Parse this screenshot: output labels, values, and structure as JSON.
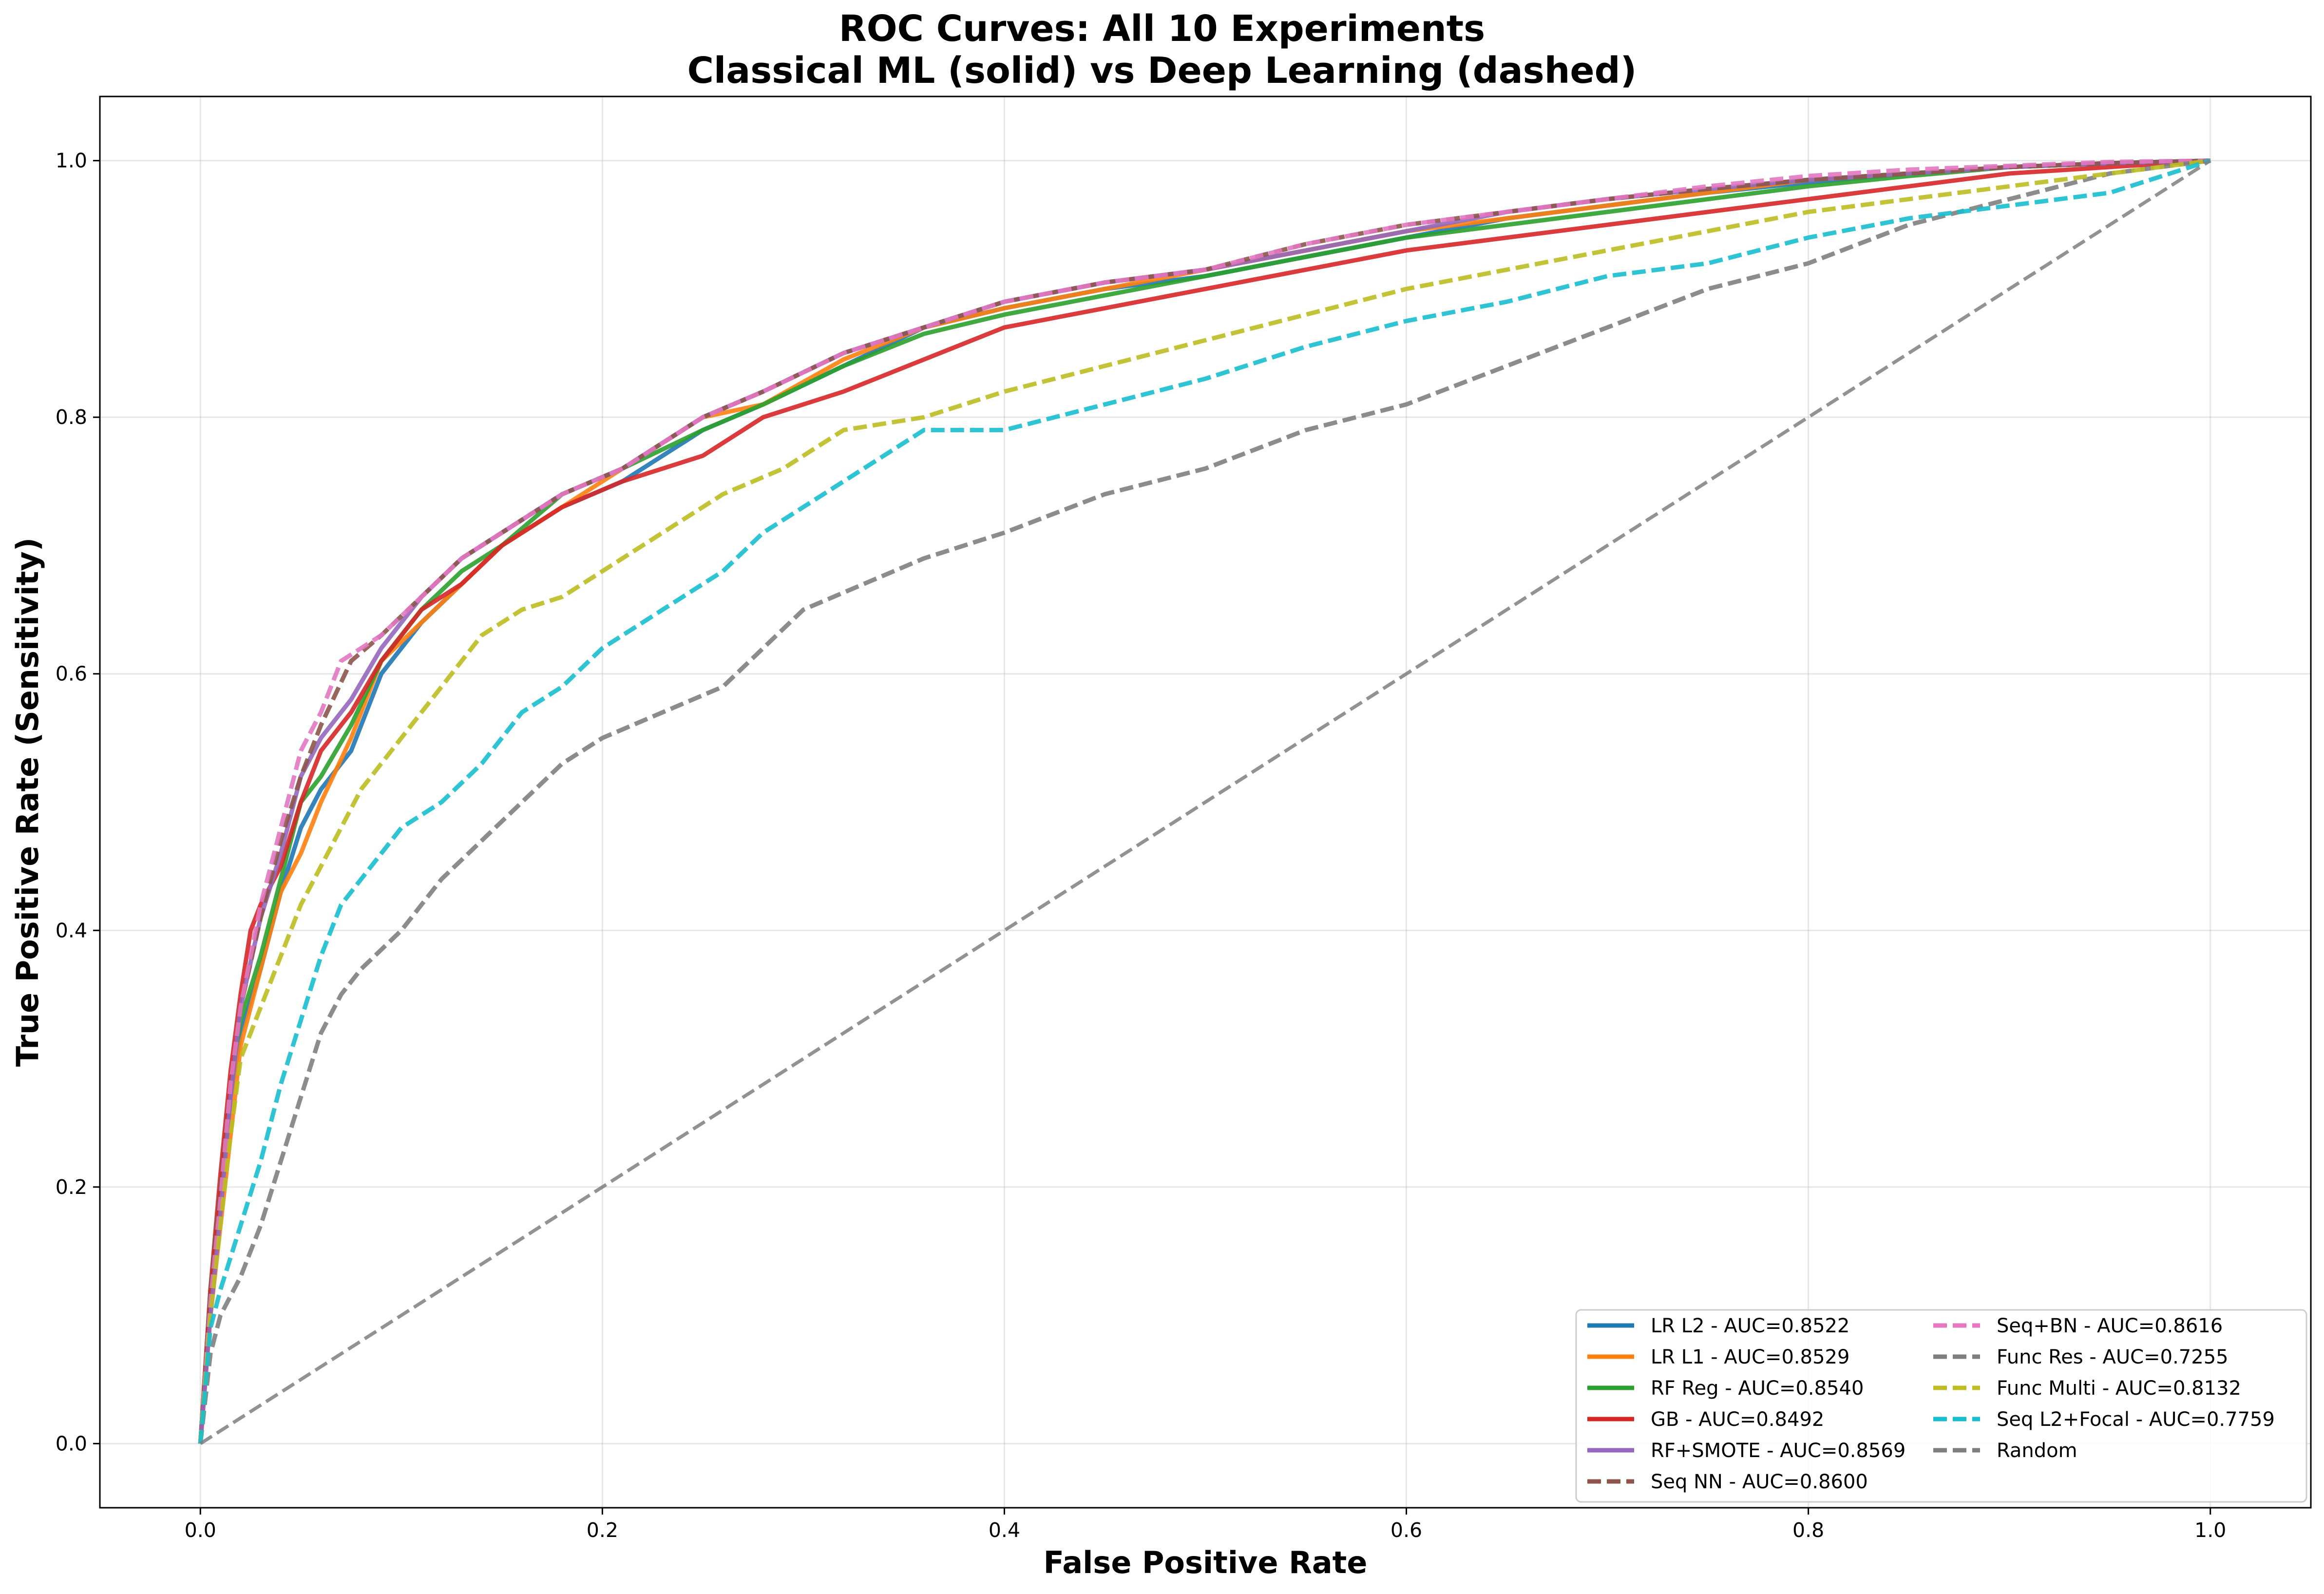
{
  "chart_data": {
    "type": "line",
    "title_line1": "ROC Curves: All 10 Experiments",
    "title_line2": "Classical ML (solid) vs Deep Learning (dashed)",
    "xlabel": "False Positive Rate",
    "ylabel": "True Positive Rate (Sensitivity)",
    "xlim": [
      -0.05,
      1.05
    ],
    "ylim": [
      -0.05,
      1.05
    ],
    "xticks": [
      "0.0",
      "0.2",
      "0.4",
      "0.6",
      "0.8",
      "1.0"
    ],
    "yticks": [
      "0.0",
      "0.2",
      "0.4",
      "0.6",
      "0.8",
      "1.0"
    ],
    "grid": true,
    "legend_position": "lower-right",
    "series": [
      {
        "name": "LR L2 - AUC=0.8522",
        "color": "#1f77b4",
        "style": "solid",
        "x": [
          0,
          0.005,
          0.01,
          0.015,
          0.02,
          0.03,
          0.04,
          0.05,
          0.06,
          0.075,
          0.09,
          0.11,
          0.13,
          0.15,
          0.18,
          0.21,
          0.25,
          0.28,
          0.32,
          0.36,
          0.4,
          0.45,
          0.5,
          0.55,
          0.6,
          0.65,
          0.7,
          0.75,
          0.8,
          0.85,
          0.9,
          0.95,
          1.0
        ],
        "y": [
          0,
          0.11,
          0.19,
          0.27,
          0.32,
          0.37,
          0.43,
          0.48,
          0.51,
          0.54,
          0.6,
          0.64,
          0.67,
          0.7,
          0.73,
          0.75,
          0.79,
          0.81,
          0.84,
          0.87,
          0.885,
          0.9,
          0.91,
          0.925,
          0.94,
          0.955,
          0.965,
          0.975,
          0.983,
          0.99,
          0.995,
          0.998,
          1.0
        ]
      },
      {
        "name": "LR L1 - AUC=0.8529",
        "color": "#ff7f0e",
        "style": "solid",
        "x": [
          0,
          0.005,
          0.01,
          0.015,
          0.02,
          0.03,
          0.04,
          0.05,
          0.06,
          0.075,
          0.09,
          0.11,
          0.13,
          0.15,
          0.18,
          0.21,
          0.25,
          0.28,
          0.32,
          0.36,
          0.4,
          0.45,
          0.5,
          0.55,
          0.6,
          0.65,
          0.7,
          0.75,
          0.8,
          0.85,
          0.9,
          0.95,
          1.0
        ],
        "y": [
          0,
          0.1,
          0.17,
          0.24,
          0.31,
          0.37,
          0.43,
          0.46,
          0.5,
          0.55,
          0.61,
          0.64,
          0.67,
          0.7,
          0.73,
          0.76,
          0.8,
          0.81,
          0.845,
          0.87,
          0.885,
          0.9,
          0.915,
          0.93,
          0.945,
          0.955,
          0.965,
          0.975,
          0.985,
          0.99,
          0.995,
          0.998,
          1.0
        ]
      },
      {
        "name": "RF Reg - AUC=0.8540",
        "color": "#2ca02c",
        "style": "solid",
        "x": [
          0,
          0.005,
          0.01,
          0.015,
          0.02,
          0.03,
          0.04,
          0.05,
          0.06,
          0.075,
          0.09,
          0.11,
          0.13,
          0.15,
          0.18,
          0.21,
          0.25,
          0.28,
          0.32,
          0.36,
          0.4,
          0.45,
          0.5,
          0.55,
          0.6,
          0.65,
          0.7,
          0.75,
          0.8,
          0.85,
          0.9,
          0.95,
          1.0
        ],
        "y": [
          0,
          0.12,
          0.2,
          0.28,
          0.33,
          0.38,
          0.44,
          0.5,
          0.52,
          0.56,
          0.61,
          0.65,
          0.68,
          0.7,
          0.74,
          0.76,
          0.79,
          0.81,
          0.84,
          0.865,
          0.88,
          0.895,
          0.91,
          0.925,
          0.94,
          0.95,
          0.96,
          0.97,
          0.98,
          0.988,
          0.995,
          0.998,
          1.0
        ]
      },
      {
        "name": "GB - AUC=0.8492",
        "color": "#d62728",
        "style": "solid",
        "x": [
          0,
          0.005,
          0.01,
          0.015,
          0.02,
          0.025,
          0.03,
          0.04,
          0.05,
          0.06,
          0.075,
          0.09,
          0.11,
          0.13,
          0.15,
          0.18,
          0.21,
          0.25,
          0.28,
          0.32,
          0.36,
          0.4,
          0.45,
          0.5,
          0.55,
          0.6,
          0.65,
          0.7,
          0.75,
          0.8,
          0.85,
          0.9,
          0.95,
          1.0
        ],
        "y": [
          0,
          0.12,
          0.21,
          0.29,
          0.35,
          0.4,
          0.42,
          0.45,
          0.5,
          0.54,
          0.57,
          0.61,
          0.65,
          0.67,
          0.7,
          0.73,
          0.75,
          0.77,
          0.8,
          0.82,
          0.845,
          0.87,
          0.885,
          0.9,
          0.915,
          0.93,
          0.94,
          0.95,
          0.96,
          0.97,
          0.98,
          0.99,
          0.995,
          1.0
        ]
      },
      {
        "name": "RF+SMOTE - AUC=0.8569",
        "color": "#9467bd",
        "style": "solid",
        "x": [
          0,
          0.005,
          0.01,
          0.015,
          0.02,
          0.03,
          0.04,
          0.05,
          0.06,
          0.075,
          0.09,
          0.11,
          0.13,
          0.15,
          0.18,
          0.21,
          0.25,
          0.28,
          0.32,
          0.36,
          0.4,
          0.45,
          0.5,
          0.55,
          0.6,
          0.65,
          0.7,
          0.75,
          0.8,
          0.85,
          0.9,
          0.95,
          1.0
        ],
        "y": [
          0,
          0.1,
          0.18,
          0.27,
          0.34,
          0.41,
          0.46,
          0.52,
          0.55,
          0.58,
          0.62,
          0.66,
          0.69,
          0.71,
          0.74,
          0.76,
          0.8,
          0.82,
          0.85,
          0.87,
          0.89,
          0.905,
          0.915,
          0.93,
          0.945,
          0.96,
          0.97,
          0.978,
          0.985,
          0.99,
          0.995,
          0.998,
          1.0
        ]
      },
      {
        "name": "Seq NN - AUC=0.8600",
        "color": "#8c564b",
        "style": "dashed",
        "x": [
          0,
          0.005,
          0.01,
          0.015,
          0.02,
          0.03,
          0.04,
          0.05,
          0.06,
          0.075,
          0.09,
          0.11,
          0.13,
          0.15,
          0.18,
          0.21,
          0.25,
          0.28,
          0.32,
          0.36,
          0.4,
          0.45,
          0.5,
          0.55,
          0.6,
          0.65,
          0.7,
          0.75,
          0.8,
          0.85,
          0.9,
          0.95,
          1.0
        ],
        "y": [
          0,
          0.12,
          0.2,
          0.28,
          0.34,
          0.41,
          0.47,
          0.52,
          0.56,
          0.61,
          0.63,
          0.66,
          0.69,
          0.71,
          0.74,
          0.76,
          0.8,
          0.82,
          0.85,
          0.87,
          0.89,
          0.905,
          0.915,
          0.935,
          0.95,
          0.96,
          0.97,
          0.978,
          0.985,
          0.99,
          0.995,
          0.998,
          1.0
        ]
      },
      {
        "name": "Seq+BN - AUC=0.8616",
        "color": "#e377c2",
        "style": "dashed",
        "x": [
          0,
          0.005,
          0.01,
          0.015,
          0.02,
          0.03,
          0.04,
          0.05,
          0.06,
          0.07,
          0.08,
          0.09,
          0.11,
          0.13,
          0.15,
          0.18,
          0.21,
          0.25,
          0.28,
          0.32,
          0.36,
          0.4,
          0.45,
          0.5,
          0.55,
          0.6,
          0.65,
          0.7,
          0.75,
          0.8,
          0.85,
          0.9,
          0.95,
          1.0
        ],
        "y": [
          0,
          0.11,
          0.19,
          0.28,
          0.34,
          0.42,
          0.48,
          0.54,
          0.57,
          0.61,
          0.62,
          0.63,
          0.66,
          0.69,
          0.71,
          0.74,
          0.76,
          0.8,
          0.82,
          0.85,
          0.87,
          0.89,
          0.905,
          0.915,
          0.935,
          0.95,
          0.96,
          0.97,
          0.98,
          0.988,
          0.993,
          0.996,
          0.999,
          1.0
        ]
      },
      {
        "name": "Func Res - AUC=0.7255",
        "color": "#7f7f7f",
        "style": "dashed",
        "x": [
          0,
          0.005,
          0.01,
          0.02,
          0.03,
          0.04,
          0.05,
          0.06,
          0.07,
          0.08,
          0.1,
          0.12,
          0.14,
          0.16,
          0.18,
          0.2,
          0.23,
          0.26,
          0.28,
          0.3,
          0.33,
          0.36,
          0.4,
          0.45,
          0.5,
          0.55,
          0.6,
          0.65,
          0.7,
          0.75,
          0.8,
          0.85,
          0.9,
          0.95,
          1.0
        ],
        "y": [
          0,
          0.07,
          0.1,
          0.13,
          0.17,
          0.22,
          0.27,
          0.32,
          0.35,
          0.37,
          0.4,
          0.44,
          0.47,
          0.5,
          0.53,
          0.55,
          0.57,
          0.59,
          0.62,
          0.65,
          0.67,
          0.69,
          0.71,
          0.74,
          0.76,
          0.79,
          0.81,
          0.84,
          0.87,
          0.9,
          0.92,
          0.95,
          0.97,
          0.99,
          1.0
        ]
      },
      {
        "name": "Func Multi - AUC=0.8132",
        "color": "#bcbd22",
        "style": "dashed",
        "x": [
          0,
          0.005,
          0.01,
          0.015,
          0.02,
          0.03,
          0.04,
          0.05,
          0.06,
          0.07,
          0.08,
          0.09,
          0.1,
          0.12,
          0.14,
          0.16,
          0.18,
          0.2,
          0.23,
          0.26,
          0.29,
          0.32,
          0.36,
          0.4,
          0.45,
          0.5,
          0.55,
          0.6,
          0.65,
          0.7,
          0.75,
          0.8,
          0.85,
          0.9,
          0.95,
          1.0
        ],
        "y": [
          0,
          0.1,
          0.17,
          0.24,
          0.3,
          0.34,
          0.38,
          0.42,
          0.45,
          0.48,
          0.51,
          0.53,
          0.55,
          0.59,
          0.63,
          0.65,
          0.66,
          0.68,
          0.71,
          0.74,
          0.76,
          0.79,
          0.8,
          0.82,
          0.84,
          0.86,
          0.88,
          0.9,
          0.915,
          0.93,
          0.945,
          0.96,
          0.97,
          0.98,
          0.99,
          1.0
        ]
      },
      {
        "name": "Seq L2+Focal - AUC=0.7759",
        "color": "#17becf",
        "style": "dashed",
        "x": [
          0,
          0.005,
          0.01,
          0.02,
          0.03,
          0.04,
          0.05,
          0.06,
          0.07,
          0.08,
          0.1,
          0.12,
          0.14,
          0.16,
          0.18,
          0.2,
          0.23,
          0.26,
          0.28,
          0.3,
          0.33,
          0.36,
          0.4,
          0.45,
          0.5,
          0.55,
          0.6,
          0.65,
          0.7,
          0.75,
          0.8,
          0.85,
          0.9,
          0.95,
          1.0
        ],
        "y": [
          0,
          0.09,
          0.12,
          0.17,
          0.22,
          0.28,
          0.33,
          0.38,
          0.42,
          0.44,
          0.48,
          0.5,
          0.53,
          0.57,
          0.59,
          0.62,
          0.65,
          0.68,
          0.71,
          0.73,
          0.76,
          0.79,
          0.79,
          0.81,
          0.83,
          0.855,
          0.875,
          0.89,
          0.91,
          0.92,
          0.94,
          0.955,
          0.965,
          0.975,
          1.0
        ]
      },
      {
        "name": "Random",
        "color": "#7f7f7f",
        "style": "dashed",
        "x": [
          0,
          1
        ],
        "y": [
          0,
          1
        ]
      }
    ]
  }
}
